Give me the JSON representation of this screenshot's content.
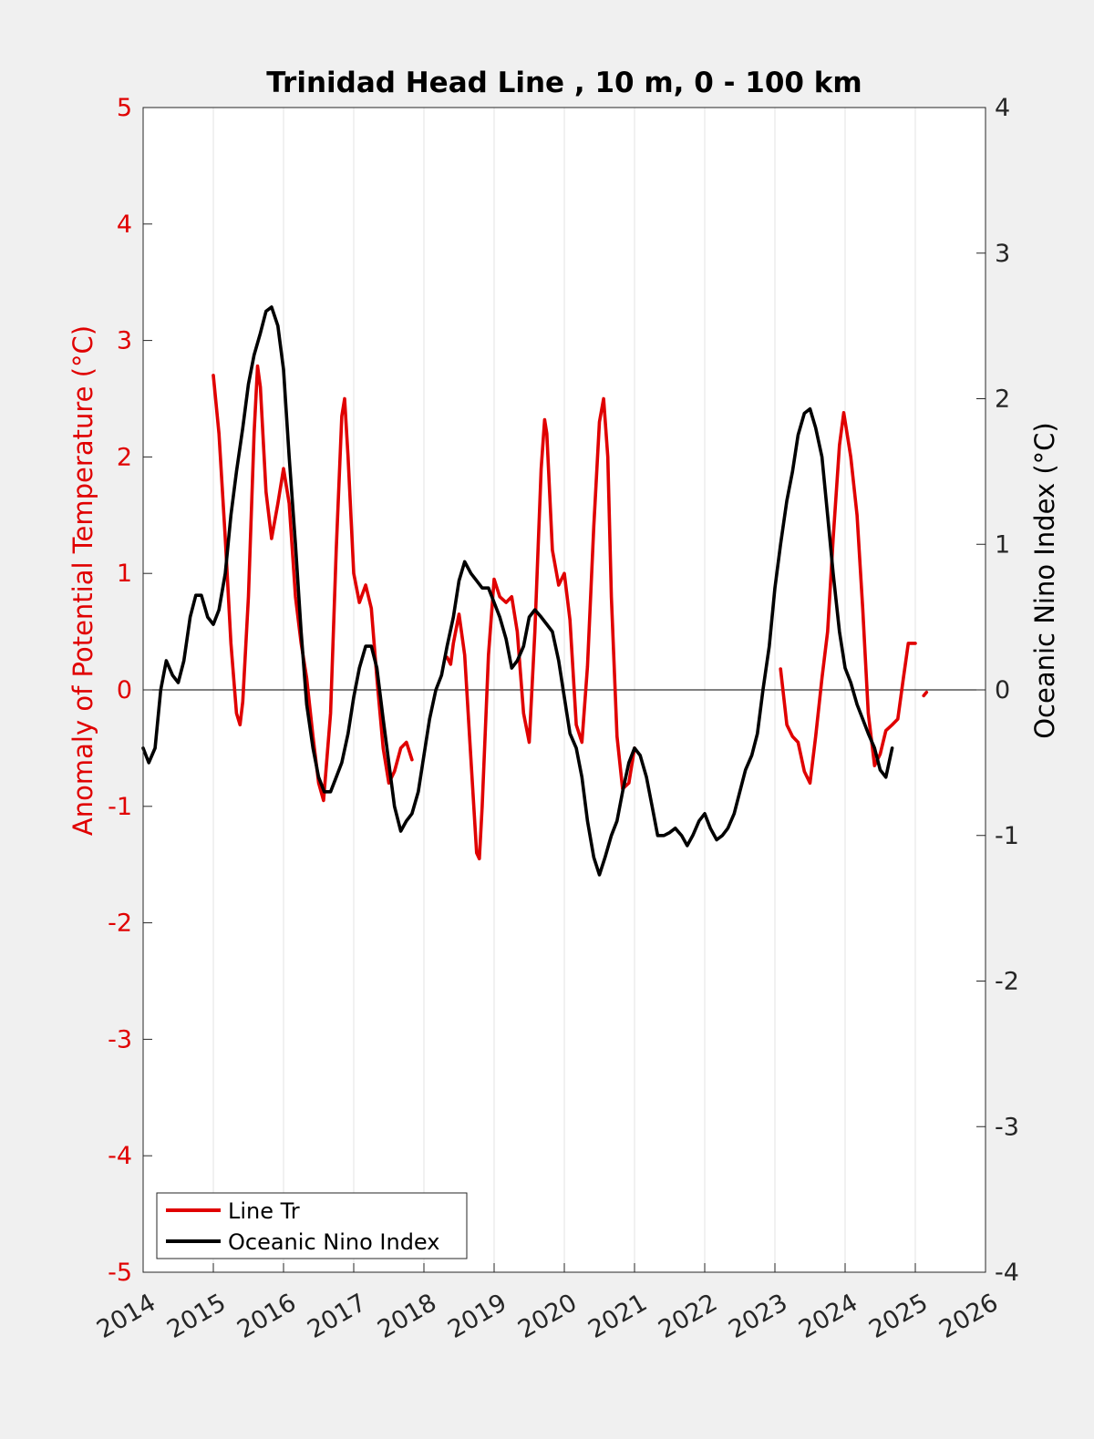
{
  "chart_data": {
    "type": "line",
    "title": "Trinidad Head Line , 10 m, 0 - 100 km",
    "ylabel_left": "Anomaly of Potential Temperature (°C)",
    "ylabel_right": "Oceanic Nino Index (°C)",
    "xlabel": "",
    "xlim": [
      2014,
      2026
    ],
    "ylim_left": [
      -5,
      5
    ],
    "ylim_right": [
      -4,
      4
    ],
    "xticks": [
      "2014",
      "2015",
      "2016",
      "2017",
      "2018",
      "2019",
      "2020",
      "2021",
      "2022",
      "2023",
      "2024",
      "2025",
      "2026"
    ],
    "yticks_left": [
      "5",
      "4",
      "3",
      "2",
      "1",
      "0",
      "-1",
      "-2",
      "-3",
      "-4",
      "-5"
    ],
    "yticks_right": [
      "4",
      "3",
      "2",
      "1",
      "0",
      "-1",
      "-2",
      "-3",
      "-4"
    ],
    "grid": "vertical",
    "zero_line": 0,
    "legend_position": "bottom-left",
    "left_axis_color": "#e00000",
    "series": [
      {
        "name": "Line Tr",
        "axis": "left",
        "color": "#e00000",
        "segments": [
          [
            [
              2015.0,
              2.7
            ],
            [
              2015.08,
              2.2
            ],
            [
              2015.17,
              1.3
            ],
            [
              2015.25,
              0.4
            ],
            [
              2015.33,
              -0.2
            ],
            [
              2015.38,
              -0.3
            ],
            [
              2015.42,
              -0.1
            ],
            [
              2015.5,
              0.8
            ],
            [
              2015.58,
              2.2
            ],
            [
              2015.63,
              2.78
            ],
            [
              2015.67,
              2.6
            ],
            [
              2015.75,
              1.7
            ],
            [
              2015.83,
              1.3
            ],
            [
              2015.92,
              1.6
            ],
            [
              2016.0,
              1.9
            ],
            [
              2016.08,
              1.6
            ],
            [
              2016.17,
              0.8
            ],
            [
              2016.25,
              0.4
            ],
            [
              2016.33,
              0.1
            ],
            [
              2016.42,
              -0.4
            ],
            [
              2016.5,
              -0.8
            ],
            [
              2016.57,
              -0.95
            ],
            [
              2016.67,
              -0.2
            ],
            [
              2016.75,
              1.2
            ],
            [
              2016.83,
              2.35
            ],
            [
              2016.87,
              2.5
            ],
            [
              2016.92,
              2.0
            ],
            [
              2017.0,
              1.0
            ],
            [
              2017.08,
              0.75
            ],
            [
              2017.17,
              0.9
            ],
            [
              2017.25,
              0.7
            ],
            [
              2017.33,
              0.1
            ],
            [
              2017.42,
              -0.5
            ],
            [
              2017.5,
              -0.8
            ],
            [
              2017.58,
              -0.7
            ],
            [
              2017.67,
              -0.5
            ],
            [
              2017.75,
              -0.45
            ],
            [
              2017.83,
              -0.6
            ]
          ],
          [
            [
              2018.33,
              0.28
            ],
            [
              2018.38,
              0.22
            ],
            [
              2018.42,
              0.4
            ],
            [
              2018.5,
              0.65
            ],
            [
              2018.58,
              0.3
            ],
            [
              2018.67,
              -0.6
            ],
            [
              2018.75,
              -1.4
            ],
            [
              2018.79,
              -1.45
            ],
            [
              2018.83,
              -1.0
            ],
            [
              2018.92,
              0.3
            ],
            [
              2019.0,
              0.95
            ],
            [
              2019.08,
              0.8
            ],
            [
              2019.17,
              0.75
            ],
            [
              2019.25,
              0.8
            ],
            [
              2019.33,
              0.5
            ],
            [
              2019.42,
              -0.2
            ],
            [
              2019.5,
              -0.45
            ],
            [
              2019.58,
              0.5
            ],
            [
              2019.67,
              1.9
            ],
            [
              2019.72,
              2.32
            ],
            [
              2019.75,
              2.2
            ],
            [
              2019.83,
              1.2
            ],
            [
              2019.92,
              0.9
            ],
            [
              2020.0,
              1.0
            ],
            [
              2020.08,
              0.6
            ],
            [
              2020.17,
              -0.3
            ],
            [
              2020.25,
              -0.45
            ],
            [
              2020.33,
              0.2
            ],
            [
              2020.42,
              1.4
            ],
            [
              2020.5,
              2.3
            ],
            [
              2020.56,
              2.5
            ],
            [
              2020.62,
              2.0
            ],
            [
              2020.67,
              0.8
            ],
            [
              2020.75,
              -0.4
            ],
            [
              2020.83,
              -0.85
            ],
            [
              2020.92,
              -0.8
            ],
            [
              2021.0,
              -0.5
            ]
          ],
          [
            [
              2023.08,
              0.18
            ],
            [
              2023.17,
              -0.3
            ],
            [
              2023.25,
              -0.4
            ],
            [
              2023.33,
              -0.45
            ],
            [
              2023.42,
              -0.7
            ],
            [
              2023.5,
              -0.8
            ],
            [
              2023.58,
              -0.4
            ],
            [
              2023.67,
              0.1
            ],
            [
              2023.75,
              0.5
            ],
            [
              2023.83,
              1.3
            ],
            [
              2023.92,
              2.1
            ],
            [
              2023.98,
              2.38
            ],
            [
              2024.08,
              2.0
            ],
            [
              2024.17,
              1.5
            ],
            [
              2024.25,
              0.7
            ],
            [
              2024.33,
              -0.2
            ],
            [
              2024.42,
              -0.65
            ],
            [
              2024.5,
              -0.55
            ],
            [
              2024.58,
              -0.35
            ],
            [
              2024.67,
              -0.3
            ],
            [
              2024.75,
              -0.25
            ],
            [
              2024.83,
              0.1
            ],
            [
              2024.9,
              0.4
            ],
            [
              2025.0,
              0.4
            ]
          ],
          [
            [
              2025.12,
              -0.05
            ],
            [
              2025.16,
              -0.02
            ]
          ]
        ]
      },
      {
        "name": "Oceanic Nino Index",
        "axis": "right",
        "color": "#000000",
        "segments": [
          [
            [
              2014.0,
              -0.4
            ],
            [
              2014.08,
              -0.5
            ],
            [
              2014.17,
              -0.4
            ],
            [
              2014.25,
              0.0
            ],
            [
              2014.33,
              0.2
            ],
            [
              2014.42,
              0.1
            ],
            [
              2014.5,
              0.05
            ],
            [
              2014.58,
              0.2
            ],
            [
              2014.67,
              0.5
            ],
            [
              2014.75,
              0.65
            ],
            [
              2014.83,
              0.65
            ],
            [
              2014.92,
              0.5
            ],
            [
              2015.0,
              0.45
            ],
            [
              2015.08,
              0.55
            ],
            [
              2015.17,
              0.8
            ],
            [
              2015.25,
              1.2
            ],
            [
              2015.33,
              1.5
            ],
            [
              2015.42,
              1.8
            ],
            [
              2015.5,
              2.1
            ],
            [
              2015.58,
              2.3
            ],
            [
              2015.67,
              2.45
            ],
            [
              2015.75,
              2.6
            ],
            [
              2015.83,
              2.63
            ],
            [
              2015.92,
              2.5
            ],
            [
              2016.0,
              2.2
            ],
            [
              2016.08,
              1.6
            ],
            [
              2016.17,
              1.0
            ],
            [
              2016.25,
              0.4
            ],
            [
              2016.33,
              -0.1
            ],
            [
              2016.42,
              -0.4
            ],
            [
              2016.5,
              -0.6
            ],
            [
              2016.58,
              -0.7
            ],
            [
              2016.67,
              -0.7
            ],
            [
              2016.75,
              -0.6
            ],
            [
              2016.83,
              -0.5
            ],
            [
              2016.92,
              -0.3
            ],
            [
              2017.0,
              -0.05
            ],
            [
              2017.08,
              0.15
            ],
            [
              2017.17,
              0.3
            ],
            [
              2017.25,
              0.3
            ],
            [
              2017.33,
              0.15
            ],
            [
              2017.42,
              -0.2
            ],
            [
              2017.5,
              -0.5
            ],
            [
              2017.58,
              -0.8
            ],
            [
              2017.67,
              -0.97
            ],
            [
              2017.75,
              -0.9
            ],
            [
              2017.83,
              -0.85
            ],
            [
              2017.92,
              -0.7
            ],
            [
              2018.0,
              -0.45
            ],
            [
              2018.08,
              -0.2
            ],
            [
              2018.17,
              0.0
            ],
            [
              2018.25,
              0.1
            ],
            [
              2018.33,
              0.3
            ],
            [
              2018.42,
              0.5
            ],
            [
              2018.5,
              0.75
            ],
            [
              2018.58,
              0.88
            ],
            [
              2018.67,
              0.8
            ],
            [
              2018.75,
              0.75
            ],
            [
              2018.83,
              0.7
            ],
            [
              2018.92,
              0.7
            ],
            [
              2019.0,
              0.6
            ],
            [
              2019.08,
              0.5
            ],
            [
              2019.17,
              0.35
            ],
            [
              2019.25,
              0.15
            ],
            [
              2019.33,
              0.2
            ],
            [
              2019.42,
              0.3
            ],
            [
              2019.5,
              0.5
            ],
            [
              2019.58,
              0.55
            ],
            [
              2019.67,
              0.5
            ],
            [
              2019.75,
              0.45
            ],
            [
              2019.83,
              0.4
            ],
            [
              2019.92,
              0.2
            ],
            [
              2020.0,
              -0.05
            ],
            [
              2020.08,
              -0.3
            ],
            [
              2020.17,
              -0.4
            ],
            [
              2020.25,
              -0.6
            ],
            [
              2020.33,
              -0.9
            ],
            [
              2020.42,
              -1.15
            ],
            [
              2020.5,
              -1.27
            ],
            [
              2020.58,
              -1.15
            ],
            [
              2020.67,
              -1.0
            ],
            [
              2020.75,
              -0.9
            ],
            [
              2020.83,
              -0.7
            ],
            [
              2020.92,
              -0.5
            ],
            [
              2021.0,
              -0.4
            ],
            [
              2021.08,
              -0.45
            ],
            [
              2021.17,
              -0.6
            ],
            [
              2021.25,
              -0.8
            ],
            [
              2021.33,
              -1.0
            ],
            [
              2021.42,
              -1.0
            ],
            [
              2021.5,
              -0.98
            ],
            [
              2021.58,
              -0.95
            ],
            [
              2021.67,
              -1.0
            ],
            [
              2021.75,
              -1.07
            ],
            [
              2021.83,
              -1.0
            ],
            [
              2021.92,
              -0.9
            ],
            [
              2022.0,
              -0.85
            ],
            [
              2022.08,
              -0.95
            ],
            [
              2022.17,
              -1.03
            ],
            [
              2022.25,
              -1.0
            ],
            [
              2022.33,
              -0.95
            ],
            [
              2022.42,
              -0.85
            ],
            [
              2022.5,
              -0.7
            ],
            [
              2022.58,
              -0.55
            ],
            [
              2022.67,
              -0.45
            ],
            [
              2022.75,
              -0.3
            ],
            [
              2022.83,
              0.0
            ],
            [
              2022.92,
              0.3
            ],
            [
              2023.0,
              0.7
            ],
            [
              2023.08,
              1.0
            ],
            [
              2023.17,
              1.3
            ],
            [
              2023.25,
              1.5
            ],
            [
              2023.33,
              1.75
            ],
            [
              2023.42,
              1.9
            ],
            [
              2023.5,
              1.93
            ],
            [
              2023.58,
              1.8
            ],
            [
              2023.67,
              1.6
            ],
            [
              2023.75,
              1.2
            ],
            [
              2023.83,
              0.8
            ],
            [
              2023.92,
              0.4
            ],
            [
              2024.0,
              0.15
            ],
            [
              2024.08,
              0.05
            ],
            [
              2024.17,
              -0.1
            ],
            [
              2024.25,
              -0.2
            ],
            [
              2024.33,
              -0.3
            ],
            [
              2024.42,
              -0.4
            ],
            [
              2024.5,
              -0.55
            ],
            [
              2024.58,
              -0.6
            ],
            [
              2024.67,
              -0.4
            ]
          ]
        ]
      }
    ]
  }
}
